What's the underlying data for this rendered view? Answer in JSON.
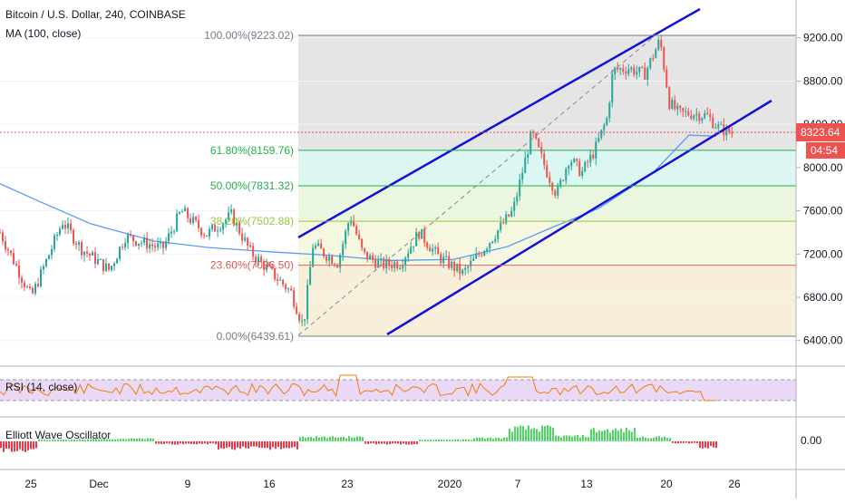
{
  "header": {
    "title": "Bitcoin / U.S. Dollar, 240, COINBASE",
    "ma_label": "MA (100, close)"
  },
  "rsi_label": "RSI (14, close)",
  "ewo_label": "Elliott Wave Oscillator",
  "price_badge": {
    "value": "8323.64",
    "countdown": "04:54",
    "color": "#ef5350"
  },
  "colors": {
    "up": "#26a69a",
    "down": "#ef5350",
    "ma": "#5b9cf6",
    "channel": "#1111d9",
    "rsi": "#f57c00",
    "rsi_band": "#e9d9f7",
    "ewo_up": "#4cd964",
    "ewo_down": "#f23645"
  },
  "chart_data": {
    "type": "candlestick",
    "y_axis": {
      "ticks": [
        "9200.00",
        "8800.00",
        "8400.00",
        "8000.00",
        "7600.00",
        "7200.00",
        "6800.00",
        "6400.00"
      ],
      "ylim": [
        6180,
        9550
      ]
    },
    "x_axis": {
      "ticks": [
        "25",
        "Dec",
        "9",
        "16",
        "23",
        "2020",
        "7",
        "13",
        "20",
        "26"
      ]
    },
    "fibonacci": [
      {
        "level": "100.00%",
        "price": 9223.02,
        "label": "100.00%(9223.02)"
      },
      {
        "level": "61.80%",
        "price": 8159.76,
        "label": "61.80%(8159.76)"
      },
      {
        "level": "50.00%",
        "price": 7831.32,
        "label": "50.00%(7831.32)"
      },
      {
        "level": "38.20%",
        "price": 7502.88,
        "label": "38.20%(7502.88)"
      },
      {
        "level": "23.60%",
        "price": 7096.5,
        "label": "23.60%(7096.50)"
      },
      {
        "level": "0.00%",
        "price": 6439.61,
        "label": "0.00%(6439.61)"
      }
    ],
    "last_price": 8323.64,
    "ewo_tick": "0.00",
    "price_path": [
      [
        0,
        7400
      ],
      [
        0.05,
        6800
      ],
      [
        0.1,
        7500
      ],
      [
        0.13,
        7250
      ],
      [
        0.175,
        7050
      ],
      [
        0.2,
        7360
      ],
      [
        0.26,
        7250
      ],
      [
        0.29,
        7600
      ],
      [
        0.33,
        7380
      ],
      [
        0.37,
        7560
      ],
      [
        0.4,
        7220
      ],
      [
        0.43,
        7050
      ],
      [
        0.465,
        6850
      ],
      [
        0.485,
        6530
      ],
      [
        0.5,
        7280
      ],
      [
        0.54,
        7120
      ],
      [
        0.56,
        7560
      ],
      [
        0.58,
        7200
      ],
      [
        0.61,
        7100
      ],
      [
        0.64,
        7120
      ],
      [
        0.67,
        7400
      ],
      [
        0.7,
        7180
      ],
      [
        0.74,
        7020
      ],
      [
        0.78,
        7300
      ],
      [
        0.82,
        7600
      ],
      [
        0.85,
        8320
      ],
      [
        0.875,
        7950
      ],
      [
        0.89,
        7750
      ],
      [
        0.91,
        8090
      ],
      [
        0.93,
        7950
      ],
      [
        0.95,
        8150
      ],
      [
        0.97,
        8450
      ],
      [
        0.98,
        8900
      ],
      [
        1.005,
        8920
      ],
      [
        1.03,
        8860
      ],
      [
        1.055,
        9180
      ],
      [
        1.07,
        8600
      ],
      [
        1.085,
        8500
      ],
      [
        1.11,
        8500
      ],
      [
        1.13,
        8480
      ],
      [
        1.15,
        8360
      ],
      [
        1.17,
        8320
      ]
    ]
  }
}
